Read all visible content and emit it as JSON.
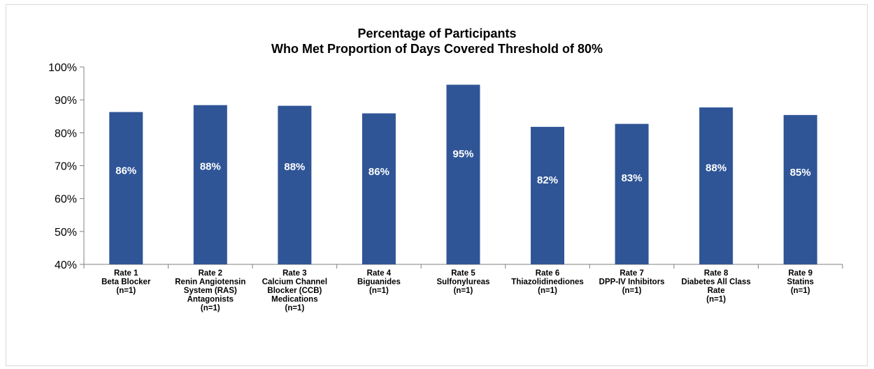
{
  "chart_data": {
    "type": "bar",
    "title_line1": "Percentage of Participants",
    "title_line2": "Who Met Proportion of Days Covered Threshold of 80%",
    "ylim": [
      40,
      100
    ],
    "yticks": [
      "40%",
      "50%",
      "60%",
      "70%",
      "80%",
      "90%",
      "100%"
    ],
    "categories": [
      [
        "Rate 1",
        "Beta Blocker",
        "(n=1)"
      ],
      [
        "Rate 2",
        "Renin Angiotensin",
        "System (RAS)",
        "Antagonists",
        "(n=1)"
      ],
      [
        "Rate 3",
        "Calcium Channel",
        "Blocker (CCB)",
        "Medications",
        "(n=1)"
      ],
      [
        "Rate 4",
        "Biguanides",
        "(n=1)"
      ],
      [
        "Rate 5",
        "Sulfonylureas",
        "(n=1)"
      ],
      [
        "Rate 6",
        "Thiazolidinediones",
        "(n=1)"
      ],
      [
        "Rate 7",
        "DPP-IV Inhibitors",
        "(n=1)"
      ],
      [
        "Rate 8",
        "Diabetes All Class",
        "Rate",
        "(n=1)"
      ],
      [
        "Rate 9",
        "Statins",
        "(n=1)"
      ]
    ],
    "values": [
      86.3,
      88.4,
      88.2,
      85.9,
      94.6,
      81.8,
      82.7,
      87.7,
      85.4
    ],
    "data_labels": [
      "86%",
      "88%",
      "88%",
      "86%",
      "95%",
      "82%",
      "83%",
      "88%",
      "85%"
    ],
    "bar_color": "#2f5597",
    "label_color": "#ffffff",
    "grid": false,
    "legend": "none"
  }
}
